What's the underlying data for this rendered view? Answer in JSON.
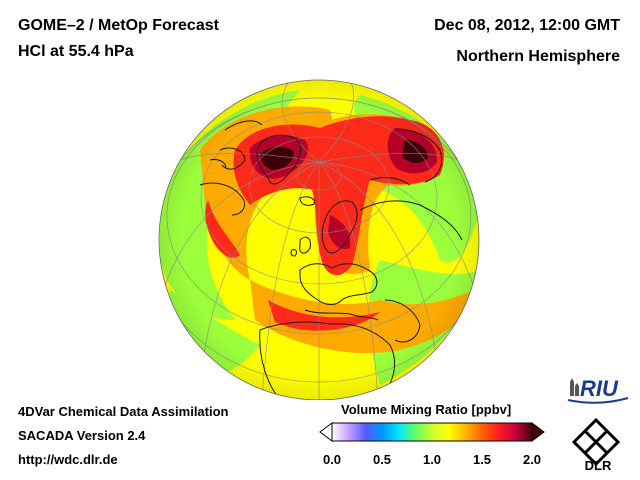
{
  "header": {
    "title": "GOME–2 / MetOp Forecast",
    "subtitle": "HCl at 55.4 hPa",
    "datetime": "Dec 08, 2012, 12:00 GMT",
    "region": "Northern Hemisphere"
  },
  "footer": {
    "line1": "4DVar Chemical Data Assimilation",
    "line2": "SACADA Version 2.4",
    "line3": "http://wdc.dlr.de"
  },
  "colorbar": {
    "title": "Volume Mixing Ratio [ppbv]",
    "ticks": [
      "0.0",
      "0.5",
      "1.0",
      "1.5",
      "2.0"
    ],
    "range": [
      0.0,
      2.0
    ],
    "colors": [
      "#ffffff",
      "#c8a0ff",
      "#5a5aff",
      "#0096ff",
      "#00e6ff",
      "#64ff64",
      "#c8ff32",
      "#ffff00",
      "#ffb400",
      "#ff6400",
      "#ff1e1e",
      "#c8003c",
      "#46000a"
    ]
  },
  "logos": {
    "riu": "RIU",
    "dlr": "DLR"
  },
  "map": {
    "projection": "orthographic",
    "background_level": 1.1,
    "colors": {
      "yellow": "#ffff00",
      "green": "#9cff3c",
      "orange": "#ffaa00",
      "red": "#ff2a1a",
      "darkred": "#b40028",
      "darkest": "#3c0008"
    }
  }
}
